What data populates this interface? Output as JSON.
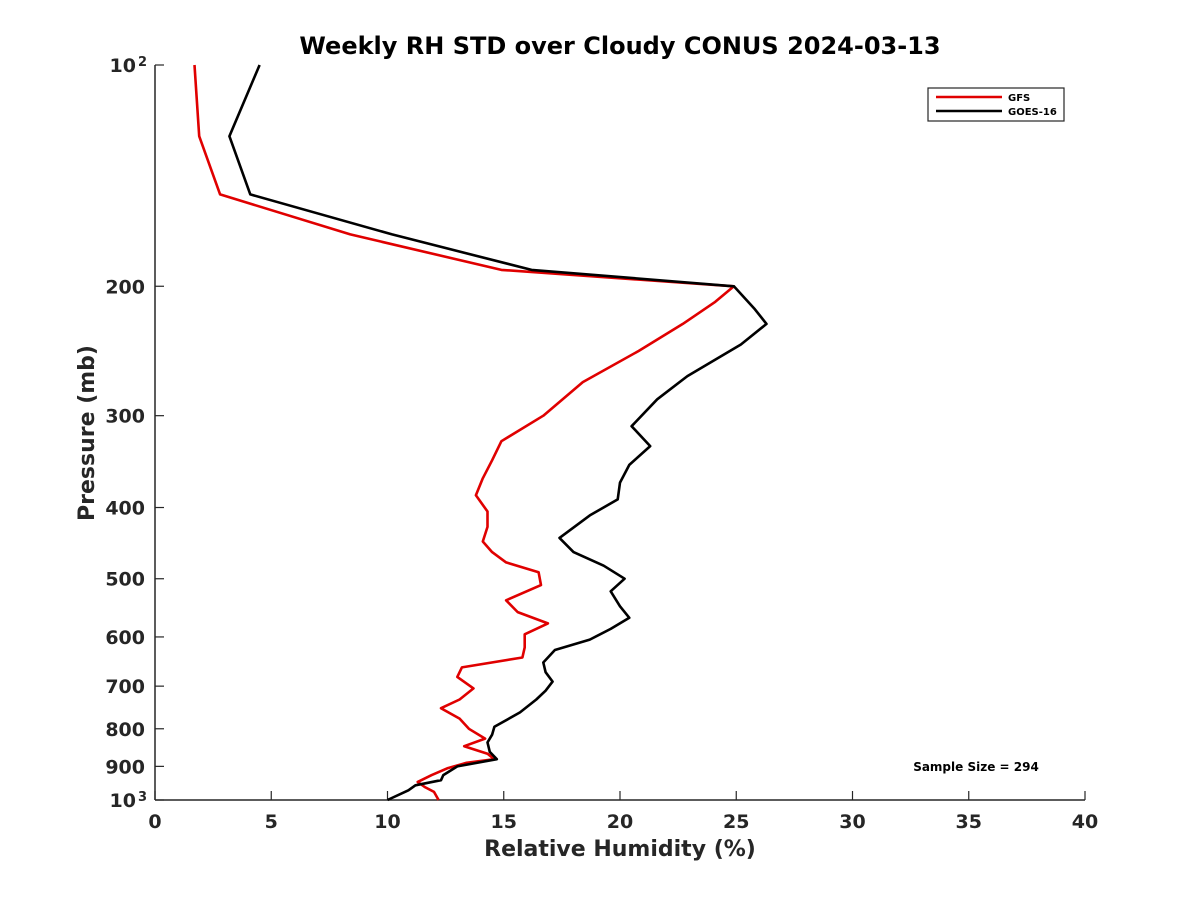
{
  "chart_data": {
    "type": "line",
    "title": "Weekly RH STD over Cloudy CONUS 2024-03-13",
    "xlabel": "Relative Humidity (%)",
    "ylabel": "Pressure (mb)",
    "xlim": [
      0,
      40
    ],
    "ylim": [
      100,
      1000
    ],
    "yscale": "log",
    "y_reversed": true,
    "grid": false,
    "legend_position": "top-right",
    "x_ticks": [
      "0",
      "5",
      "10",
      "15",
      "20",
      "25",
      "30",
      "35",
      "40"
    ],
    "y_ticks": [
      {
        "value": 100,
        "base": "10",
        "exp": "2"
      },
      {
        "value": 200,
        "label": "200"
      },
      {
        "value": 300,
        "label": "300"
      },
      {
        "value": 400,
        "label": "400"
      },
      {
        "value": 500,
        "label": "500"
      },
      {
        "value": 600,
        "label": "600"
      },
      {
        "value": 700,
        "label": "700"
      },
      {
        "value": 800,
        "label": "800"
      },
      {
        "value": 900,
        "label": "900"
      },
      {
        "value": 1000,
        "base": "10",
        "exp": "3"
      }
    ],
    "annotation": "Sample Size = 294",
    "series": [
      {
        "name": "GFS",
        "color": "#e00000",
        "points": [
          [
            1.7,
            100
          ],
          [
            1.9,
            125
          ],
          [
            2.8,
            150
          ],
          [
            8.4,
            170
          ],
          [
            14.9,
            190
          ],
          [
            24.9,
            200
          ],
          [
            24.1,
            210
          ],
          [
            22.7,
            225
          ],
          [
            20.8,
            245
          ],
          [
            18.4,
            270
          ],
          [
            16.7,
            300
          ],
          [
            14.9,
            325
          ],
          [
            14.5,
            345
          ],
          [
            14.1,
            365
          ],
          [
            13.8,
            385
          ],
          [
            14.3,
            405
          ],
          [
            14.3,
            425
          ],
          [
            14.1,
            445
          ],
          [
            14.5,
            460
          ],
          [
            15.1,
            475
          ],
          [
            16.5,
            490
          ],
          [
            16.6,
            510
          ],
          [
            15.1,
            535
          ],
          [
            15.6,
            555
          ],
          [
            16.9,
            575
          ],
          [
            15.9,
            595
          ],
          [
            15.9,
            620
          ],
          [
            15.8,
            640
          ],
          [
            13.2,
            660
          ],
          [
            13.0,
            680
          ],
          [
            13.7,
            705
          ],
          [
            13.1,
            730
          ],
          [
            12.3,
            750
          ],
          [
            13.1,
            775
          ],
          [
            13.5,
            800
          ],
          [
            14.2,
            825
          ],
          [
            13.3,
            845
          ],
          [
            14.3,
            865
          ],
          [
            14.6,
            880
          ],
          [
            13.4,
            890
          ],
          [
            12.6,
            905
          ],
          [
            11.9,
            925
          ],
          [
            11.3,
            945
          ],
          [
            11.6,
            960
          ],
          [
            12.0,
            975
          ],
          [
            12.2,
            1000
          ]
        ]
      },
      {
        "name": "GOES-16",
        "color": "#000000",
        "points": [
          [
            4.5,
            100
          ],
          [
            3.2,
            125
          ],
          [
            4.1,
            150
          ],
          [
            10.2,
            170
          ],
          [
            16.2,
            190
          ],
          [
            24.9,
            200
          ],
          [
            25.8,
            215
          ],
          [
            26.3,
            225
          ],
          [
            25.2,
            240
          ],
          [
            22.9,
            265
          ],
          [
            21.6,
            285
          ],
          [
            20.5,
            310
          ],
          [
            21.3,
            330
          ],
          [
            20.4,
            350
          ],
          [
            20.0,
            370
          ],
          [
            19.9,
            390
          ],
          [
            18.7,
            410
          ],
          [
            17.4,
            440
          ],
          [
            18.0,
            460
          ],
          [
            19.3,
            480
          ],
          [
            20.2,
            500
          ],
          [
            19.6,
            520
          ],
          [
            20.0,
            545
          ],
          [
            20.4,
            565
          ],
          [
            19.6,
            585
          ],
          [
            18.7,
            605
          ],
          [
            17.2,
            625
          ],
          [
            16.7,
            650
          ],
          [
            16.8,
            670
          ],
          [
            17.1,
            690
          ],
          [
            16.8,
            710
          ],
          [
            16.4,
            730
          ],
          [
            15.7,
            760
          ],
          [
            14.6,
            795
          ],
          [
            14.5,
            815
          ],
          [
            14.3,
            835
          ],
          [
            14.4,
            860
          ],
          [
            14.7,
            880
          ],
          [
            13.0,
            900
          ],
          [
            12.4,
            925
          ],
          [
            12.3,
            940
          ],
          [
            11.2,
            955
          ],
          [
            10.9,
            970
          ],
          [
            10.0,
            1000
          ]
        ]
      }
    ]
  }
}
